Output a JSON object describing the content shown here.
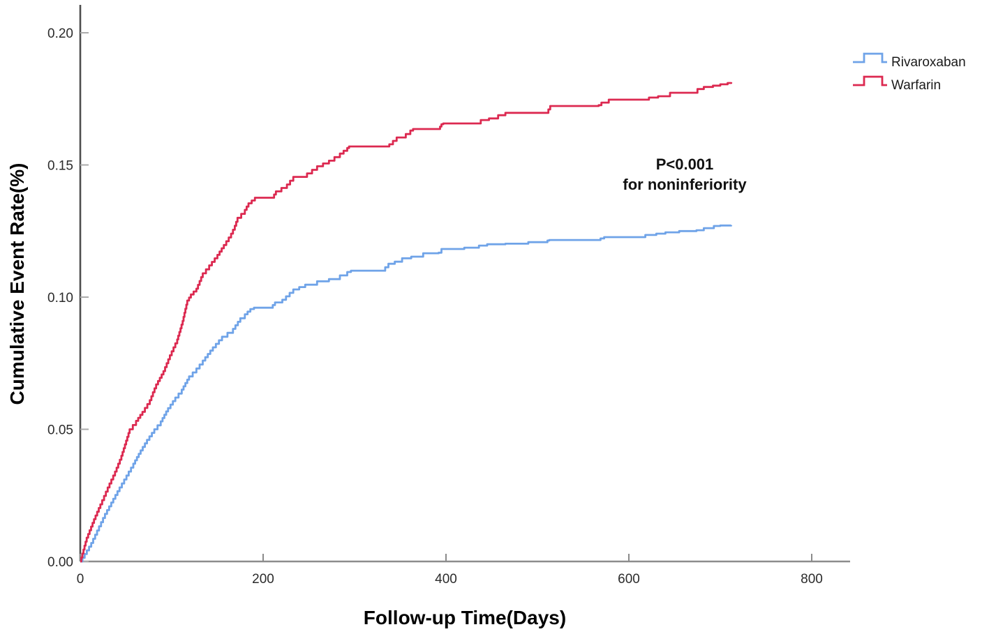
{
  "chart_data": {
    "type": "line",
    "subtype": "kaplan-meier-step",
    "title": "",
    "xlabel": "Follow-up Time(Days)",
    "ylabel": "Cumulative Event Rate(%)",
    "xlim": [
      0,
      842
    ],
    "ylim": [
      0,
      0.2105
    ],
    "grid": "off",
    "legend_position": "top-right",
    "x_ticks": [
      {
        "value": 0,
        "label": "0"
      },
      {
        "value": 200,
        "label": "200"
      },
      {
        "value": 400,
        "label": "400"
      },
      {
        "value": 600,
        "label": "600"
      },
      {
        "value": 800,
        "label": "800"
      }
    ],
    "y_ticks": [
      {
        "value": 0.0,
        "label": "0.00"
      },
      {
        "value": 0.05,
        "label": "0.05"
      },
      {
        "value": 0.1,
        "label": "0.10"
      },
      {
        "value": 0.15,
        "label": "0.15"
      },
      {
        "value": 0.2,
        "label": "0.20"
      }
    ],
    "annotation": {
      "line1": "P<0.001",
      "line2": "for noninferiority"
    },
    "series": [
      {
        "name": "Rivaroxaban",
        "color": "#6FA3E8",
        "points": [
          [
            0,
            0
          ],
          [
            12,
            0.007
          ],
          [
            27,
            0.018
          ],
          [
            43,
            0.028
          ],
          [
            58,
            0.037
          ],
          [
            66,
            0.042
          ],
          [
            73,
            0.046
          ],
          [
            81,
            0.05
          ],
          [
            88,
            0.053
          ],
          [
            96,
            0.058
          ],
          [
            104,
            0.062
          ],
          [
            111,
            0.065
          ],
          [
            119,
            0.07
          ],
          [
            127,
            0.073
          ],
          [
            134,
            0.076
          ],
          [
            145,
            0.081
          ],
          [
            155,
            0.085
          ],
          [
            167,
            0.088
          ],
          [
            175,
            0.092
          ],
          [
            180,
            0.0935
          ],
          [
            186,
            0.0955
          ],
          [
            190,
            0.096
          ],
          [
            208,
            0.096
          ],
          [
            213,
            0.098
          ],
          [
            221,
            0.099
          ],
          [
            233,
            0.1029
          ],
          [
            246,
            0.1047
          ],
          [
            259,
            0.106
          ],
          [
            272,
            0.1068
          ],
          [
            284,
            0.1082
          ],
          [
            292,
            0.1095
          ],
          [
            296,
            0.11
          ],
          [
            330,
            0.11
          ],
          [
            337,
            0.1126
          ],
          [
            344,
            0.1134
          ],
          [
            352,
            0.1147
          ],
          [
            362,
            0.1153
          ],
          [
            375,
            0.1166
          ],
          [
            392,
            0.1168
          ],
          [
            395,
            0.1182
          ],
          [
            420,
            0.1187
          ],
          [
            436,
            0.1195
          ],
          [
            445,
            0.12
          ],
          [
            465,
            0.1202
          ],
          [
            490,
            0.1208
          ],
          [
            511,
            0.1214
          ],
          [
            513,
            0.1216
          ],
          [
            567,
            0.1216
          ],
          [
            569,
            0.1222
          ],
          [
            573,
            0.1227
          ],
          [
            612,
            0.1227
          ],
          [
            618,
            0.1235
          ],
          [
            630,
            0.124
          ],
          [
            640,
            0.1245
          ],
          [
            655,
            0.125
          ],
          [
            674,
            0.1253
          ],
          [
            682,
            0.1261
          ],
          [
            693,
            0.1269
          ],
          [
            700,
            0.1271
          ],
          [
            712,
            0.1272
          ]
        ]
      },
      {
        "name": "Warfarin",
        "color": "#DC2950",
        "points": [
          [
            0,
            0
          ],
          [
            7,
            0.009
          ],
          [
            15,
            0.016
          ],
          [
            22,
            0.0216
          ],
          [
            30,
            0.028
          ],
          [
            38,
            0.034
          ],
          [
            45,
            0.04
          ],
          [
            54,
            0.05
          ],
          [
            61,
            0.0532
          ],
          [
            68,
            0.0566
          ],
          [
            76,
            0.061
          ],
          [
            83,
            0.067
          ],
          [
            91,
            0.072
          ],
          [
            98,
            0.078
          ],
          [
            106,
            0.084
          ],
          [
            112,
            0.091
          ],
          [
            117,
            0.0987
          ],
          [
            121,
            0.101
          ],
          [
            127,
            0.1032
          ],
          [
            134,
            0.109
          ],
          [
            141,
            0.112
          ],
          [
            150,
            0.116
          ],
          [
            157,
            0.1197
          ],
          [
            165,
            0.124
          ],
          [
            169,
            0.127
          ],
          [
            172,
            0.13
          ],
          [
            180,
            0.133
          ],
          [
            184,
            0.1355
          ],
          [
            191,
            0.1376
          ],
          [
            210,
            0.1376
          ],
          [
            214,
            0.14
          ],
          [
            226,
            0.1426
          ],
          [
            233,
            0.1455
          ],
          [
            248,
            0.1468
          ],
          [
            259,
            0.1495
          ],
          [
            272,
            0.1516
          ],
          [
            284,
            0.1543
          ],
          [
            292,
            0.1564
          ],
          [
            294,
            0.157
          ],
          [
            330,
            0.157
          ],
          [
            338,
            0.1578
          ],
          [
            346,
            0.1604
          ],
          [
            356,
            0.1617
          ],
          [
            361,
            0.163
          ],
          [
            364,
            0.1636
          ],
          [
            392,
            0.1636
          ],
          [
            395,
            0.1654
          ],
          [
            397,
            0.1657
          ],
          [
            436,
            0.1657
          ],
          [
            438,
            0.167
          ],
          [
            447,
            0.1676
          ],
          [
            457,
            0.1688
          ],
          [
            465,
            0.1697
          ],
          [
            510,
            0.1697
          ],
          [
            512,
            0.171
          ],
          [
            514,
            0.1723
          ],
          [
            567,
            0.1726
          ],
          [
            570,
            0.1736
          ],
          [
            578,
            0.1747
          ],
          [
            618,
            0.1747
          ],
          [
            622,
            0.1755
          ],
          [
            632,
            0.176
          ],
          [
            645,
            0.1773
          ],
          [
            670,
            0.1773
          ],
          [
            675,
            0.1787
          ],
          [
            682,
            0.1795
          ],
          [
            692,
            0.18
          ],
          [
            700,
            0.1805
          ],
          [
            708,
            0.181
          ],
          [
            712,
            0.1813
          ]
        ]
      }
    ],
    "colors": {
      "y_axis_line": "#4d4d4d",
      "x_axis_line": "#8c8c8c",
      "y_tick": "#ababab",
      "x_tick": "#8a8a8a",
      "background": "#ffffff"
    }
  }
}
